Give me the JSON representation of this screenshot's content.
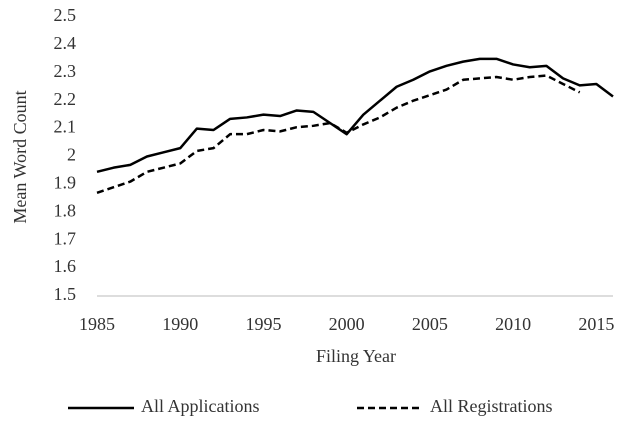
{
  "chart_data": {
    "type": "line",
    "x_label": "Filing Year",
    "y_label": "Mean Word Count",
    "x": [
      1985,
      1986,
      1987,
      1988,
      1989,
      1990,
      1991,
      1992,
      1993,
      1994,
      1995,
      1996,
      1997,
      1998,
      1999,
      2000,
      2001,
      2002,
      2003,
      2004,
      2005,
      2006,
      2007,
      2008,
      2009,
      2010,
      2011,
      2012,
      2013,
      2014,
      2015,
      2016
    ],
    "series": [
      {
        "name": "All Applications",
        "color": "#000000",
        "dash": false,
        "values": [
          1.945,
          1.96,
          1.97,
          2.0,
          2.015,
          2.03,
          2.1,
          2.095,
          2.135,
          2.14,
          2.15,
          2.145,
          2.165,
          2.16,
          2.12,
          2.08,
          2.15,
          2.2,
          2.25,
          2.275,
          2.305,
          2.325,
          2.34,
          2.35,
          2.35,
          2.33,
          2.32,
          2.325,
          2.28,
          2.255,
          2.26,
          2.215
        ]
      },
      {
        "name": "All Registrations",
        "color": "#000000",
        "dash": true,
        "values": [
          1.87,
          1.89,
          1.91,
          1.945,
          1.96,
          1.975,
          2.02,
          2.03,
          2.08,
          2.08,
          2.095,
          2.09,
          2.105,
          2.11,
          2.12,
          2.085,
          2.115,
          2.14,
          2.175,
          2.2,
          2.22,
          2.24,
          2.275,
          2.28,
          2.285,
          2.275,
          2.285,
          2.29,
          2.26,
          2.23,
          null,
          null
        ]
      }
    ],
    "xlim": [
      1985,
      2016
    ],
    "xticks": [
      1985,
      1990,
      1995,
      2000,
      2005,
      2010,
      2015
    ],
    "ylim": [
      1.5,
      2.5
    ],
    "yticks": [
      1.5,
      1.6,
      1.7,
      1.8,
      1.9,
      2,
      2.1,
      2.2,
      2.3,
      2.4,
      2.5
    ],
    "legend": "bottom"
  }
}
